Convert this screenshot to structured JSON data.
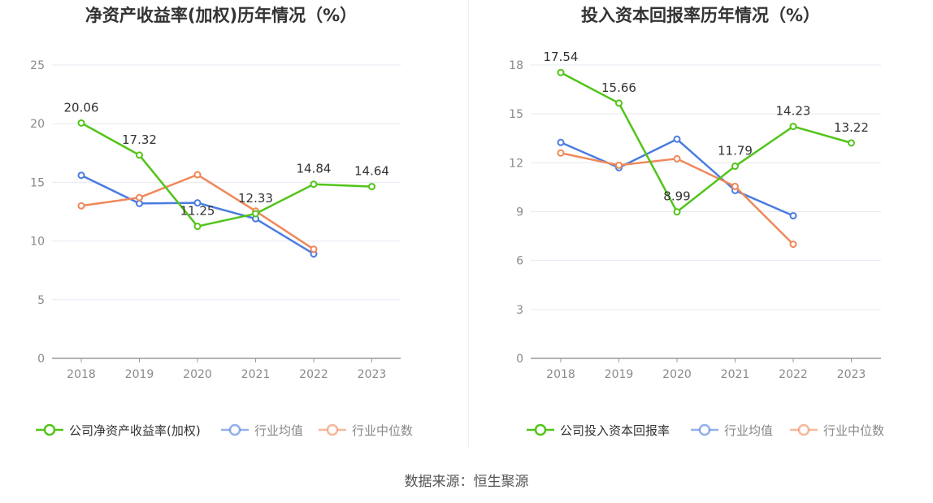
{
  "source": "数据来源：恒生聚源",
  "chart_data": [
    {
      "type": "line",
      "title": "净资产收益率(加权)历年情况（%）",
      "x": [
        "2018",
        "2019",
        "2020",
        "2021",
        "2022",
        "2023"
      ],
      "ylim": [
        0,
        25
      ],
      "yticks": [
        0,
        5,
        10,
        15,
        20,
        25
      ],
      "grid": true,
      "legend_position": "bottom",
      "series": [
        {
          "name": "公司净资产收益率(加权)",
          "color": "#52c41a",
          "values": [
            20.06,
            17.32,
            11.25,
            12.33,
            14.84,
            14.64
          ],
          "labels": [
            "20.06",
            "17.32",
            "11.25",
            "12.33",
            "14.84",
            "14.64"
          ]
        },
        {
          "name": "行业均值",
          "color": "#4a7ce0",
          "values": [
            15.6,
            13.2,
            13.25,
            11.9,
            8.9,
            null
          ]
        },
        {
          "name": "行业中位数",
          "color": "#f0885a",
          "values": [
            13.0,
            13.7,
            15.65,
            12.55,
            9.3,
            null
          ]
        }
      ]
    },
    {
      "type": "line",
      "title": "投入资本回报率历年情况（%）",
      "x": [
        "2018",
        "2019",
        "2020",
        "2021",
        "2022",
        "2023"
      ],
      "ylim": [
        0,
        18
      ],
      "yticks": [
        0,
        3,
        6,
        9,
        12,
        15,
        18
      ],
      "grid": true,
      "legend_position": "bottom",
      "series": [
        {
          "name": "公司投入资本回报率",
          "color": "#52c41a",
          "values": [
            17.54,
            15.66,
            8.99,
            11.79,
            14.23,
            13.22
          ],
          "labels": [
            "17.54",
            "15.66",
            "8.99",
            "11.79",
            "14.23",
            "13.22"
          ]
        },
        {
          "name": "行业均值",
          "color": "#4a7ce0",
          "values": [
            13.25,
            11.7,
            13.45,
            10.3,
            8.75,
            null
          ]
        },
        {
          "name": "行业中位数",
          "color": "#f0885a",
          "values": [
            12.6,
            11.85,
            12.25,
            10.55,
            7.0,
            null
          ]
        }
      ]
    }
  ]
}
